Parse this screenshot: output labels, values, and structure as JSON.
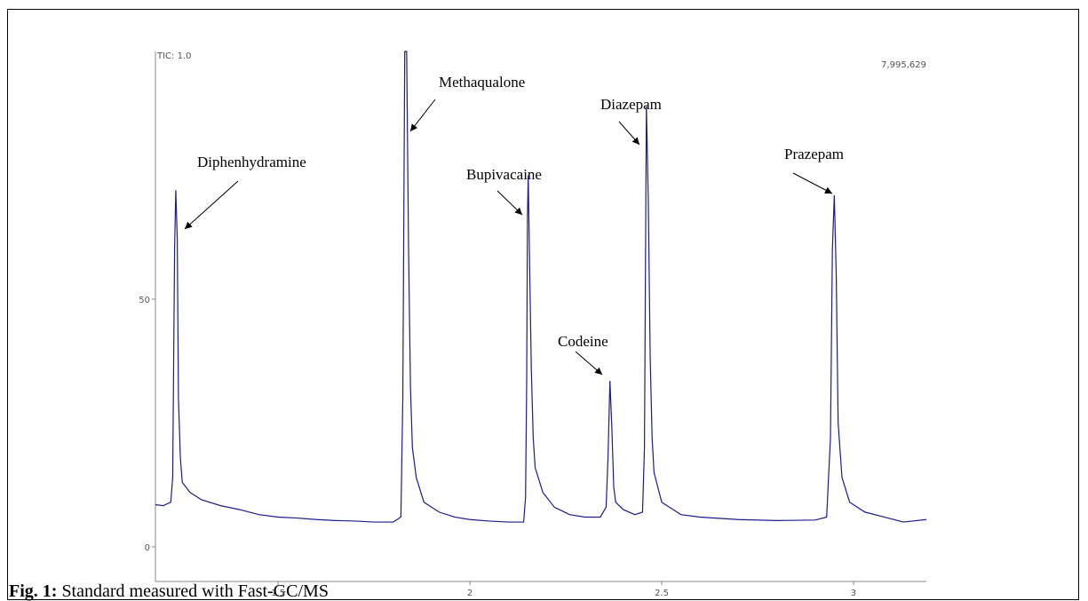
{
  "chart_data": {
    "type": "line",
    "header_left": "TIC: 1.0",
    "header_right": "7,995,629",
    "caption_label": "Fig. 1:",
    "caption": "Standard measured with Fast-GC/MS",
    "annotations": [
      "Diphenhydramine",
      "Methaqualone",
      "Bupivacaine",
      "Codeine",
      "Diazepam",
      "Prazepam"
    ],
    "x": [
      1.18,
      1.2,
      1.22,
      1.225,
      1.23,
      1.233,
      1.237,
      1.24,
      1.245,
      1.25,
      1.27,
      1.3,
      1.35,
      1.4,
      1.45,
      1.5,
      1.55,
      1.6,
      1.65,
      1.7,
      1.75,
      1.8,
      1.82,
      1.825,
      1.83,
      1.835,
      1.84,
      1.845,
      1.85,
      1.86,
      1.88,
      1.92,
      1.96,
      2.0,
      2.05,
      2.1,
      2.14,
      2.145,
      2.148,
      2.15,
      2.152,
      2.155,
      2.16,
      2.165,
      2.17,
      2.19,
      2.22,
      2.26,
      2.3,
      2.34,
      2.355,
      2.36,
      2.365,
      2.37,
      2.375,
      2.38,
      2.4,
      2.43,
      2.45,
      2.455,
      2.46,
      2.465,
      2.47,
      2.475,
      2.48,
      2.5,
      2.55,
      2.6,
      2.7,
      2.8,
      2.9,
      2.93,
      2.94,
      2.945,
      2.95,
      2.955,
      2.96,
      2.97,
      2.99,
      3.03,
      3.08,
      3.13,
      3.19
    ],
    "series": [
      {
        "color": "#1c1c8a",
        "values": [
          8.5,
          8.3,
          9,
          14,
          60,
          72,
          62,
          30,
          18,
          13,
          11,
          9.5,
          8.3,
          7.5,
          6.5,
          6,
          5.8,
          5.5,
          5.3,
          5.2,
          5,
          5,
          6,
          30,
          100,
          100,
          60,
          32,
          20,
          14,
          9,
          7,
          6,
          5.5,
          5.2,
          5,
          5,
          10,
          34,
          67,
          75,
          60,
          36,
          22,
          16,
          11,
          8,
          6.5,
          6,
          6,
          8,
          18,
          33.5,
          24,
          12,
          9,
          7.5,
          6.5,
          7,
          20,
          89,
          70,
          38,
          22,
          15,
          9,
          6.5,
          6,
          5.5,
          5.3,
          5.4,
          6,
          22,
          60,
          71,
          55,
          25,
          14,
          9,
          7,
          6,
          5,
          5.5
        ]
      }
    ],
    "xlim": [
      1.18,
      3.19
    ],
    "ylim": [
      -7,
      100
    ],
    "xticks": [
      1.5,
      2,
      2.5,
      3
    ],
    "yticks": [
      0,
      50
    ]
  }
}
